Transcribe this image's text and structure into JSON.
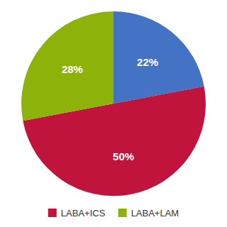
{
  "chart_data": {
    "type": "pie",
    "categories": [
      null,
      "LABA+ICS",
      "LABA+LAM"
    ],
    "values": [
      22,
      50,
      28
    ],
    "value_labels": [
      "22%",
      "50%",
      "28%"
    ],
    "colors": [
      "#4472c4",
      "#c0143c",
      "#8db30a"
    ],
    "data_labels": true,
    "legend": "bottom"
  }
}
